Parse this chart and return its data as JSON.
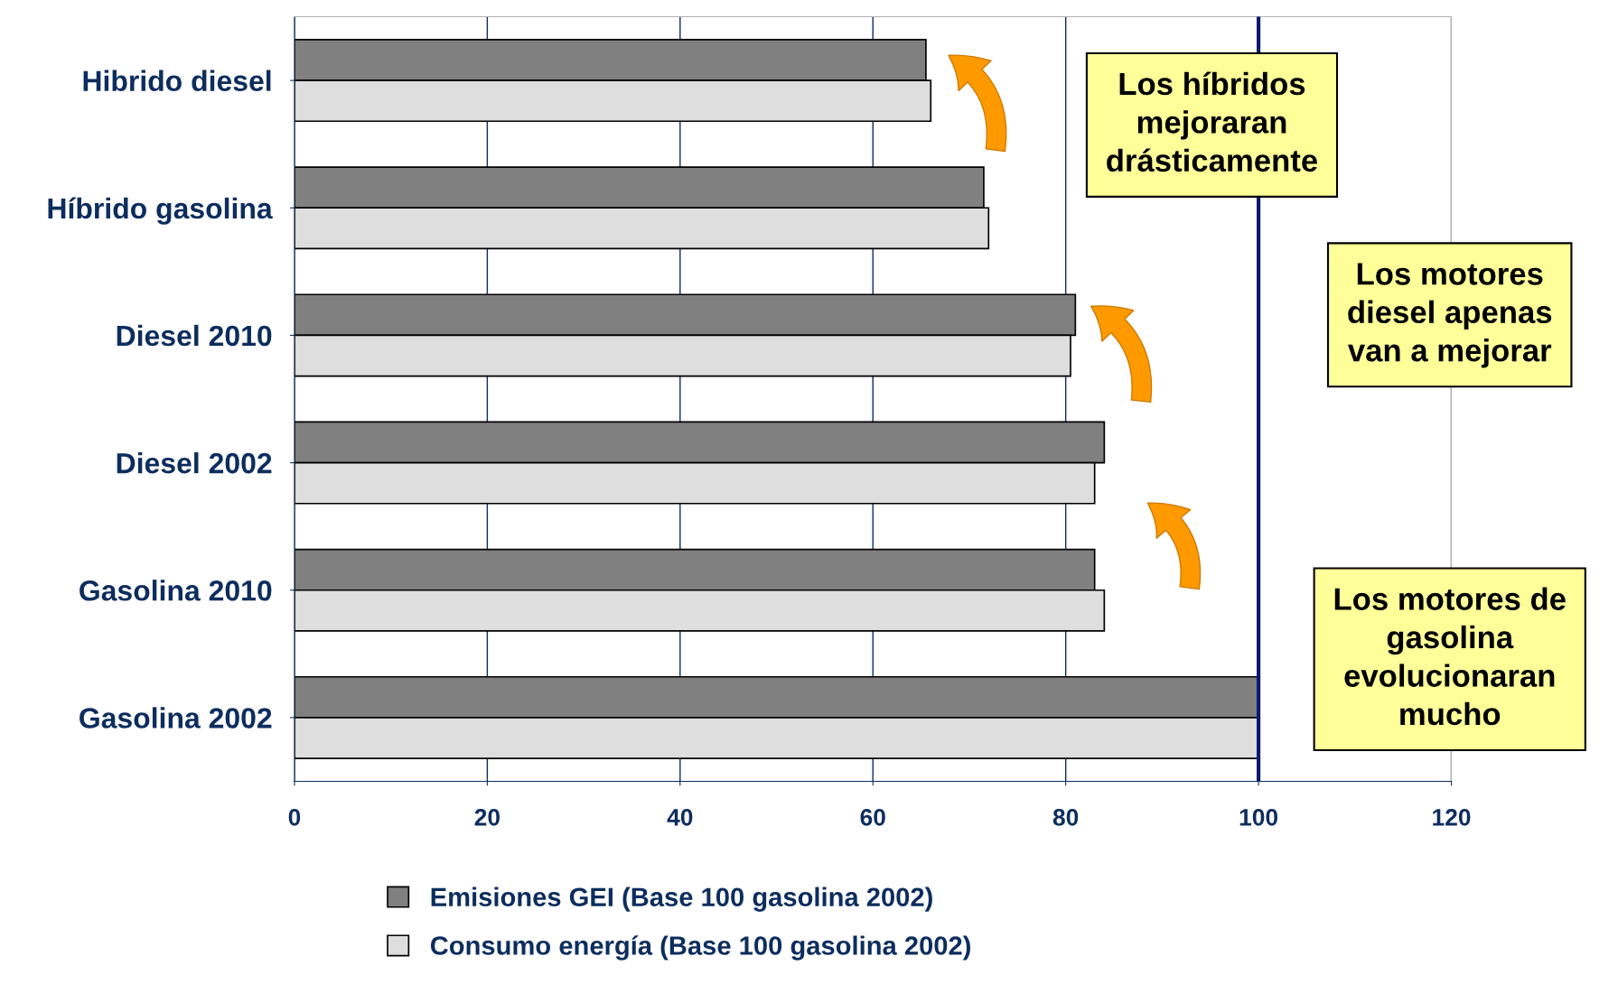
{
  "chart_data": {
    "type": "bar",
    "orientation": "horizontal",
    "categories": [
      "Hibrido diesel",
      "Híbrido gasolina",
      "Diesel 2010",
      "Diesel 2002",
      "Gasolina 2010",
      "Gasolina 2002"
    ],
    "series": [
      {
        "name": "Emisiones GEI (Base 100 gasolina 2002)",
        "color": "#808080",
        "values": [
          65.5,
          71.5,
          81,
          84,
          83,
          100
        ]
      },
      {
        "name": "Consumo energía (Base 100 gasolina 2002)",
        "color": "#dedede",
        "values": [
          66,
          72,
          80.5,
          83,
          84,
          100
        ]
      }
    ],
    "xlim": [
      0,
      120
    ],
    "xticks": [
      0,
      20,
      40,
      60,
      80,
      100,
      120
    ],
    "grid": "x",
    "legend": "bottom",
    "ref_lines": [
      {
        "axis": "x",
        "value": 100,
        "color": "#0a1a6b"
      }
    ],
    "annotations": [
      "Los híbridos\nmejoraran\ndrásticamente",
      "Los motores\ndiesel apenas\nvan a mejorar",
      "Los motores de\ngasolina\nevolucionaran\nmucho"
    ]
  }
}
